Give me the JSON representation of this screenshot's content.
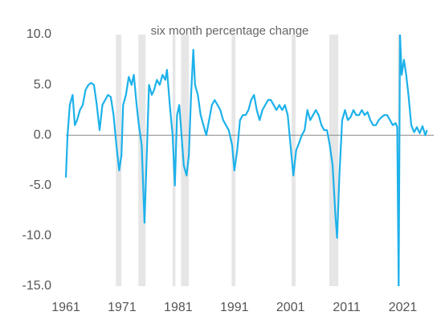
{
  "chart_data": {
    "type": "line",
    "title": "six month percentage change",
    "x": [
      1961.0,
      1961.3,
      1961.7,
      1962.2,
      1962.6,
      1963.0,
      1963.5,
      1964.0,
      1964.5,
      1965.0,
      1965.5,
      1966.0,
      1966.5,
      1967.0,
      1967.5,
      1968.0,
      1968.5,
      1969.0,
      1969.5,
      1970.0,
      1970.5,
      1970.9,
      1971.2,
      1971.7,
      1972.2,
      1972.7,
      1973.1,
      1973.6,
      1974.0,
      1974.5,
      1975.0,
      1975.4,
      1975.8,
      1976.3,
      1976.7,
      1977.2,
      1977.7,
      1978.2,
      1978.7,
      1979.0,
      1979.5,
      1980.0,
      1980.4,
      1980.8,
      1981.2,
      1981.6,
      1982.0,
      1982.5,
      1982.9,
      1983.3,
      1983.7,
      1984.0,
      1984.5,
      1985.0,
      1985.5,
      1986.0,
      1986.5,
      1987.0,
      1987.5,
      1988.0,
      1988.5,
      1989.0,
      1989.5,
      1990.0,
      1990.6,
      1991.0,
      1991.5,
      1992.0,
      1992.5,
      1993.0,
      1993.5,
      1994.0,
      1994.5,
      1995.0,
      1995.5,
      1996.0,
      1996.5,
      1997.0,
      1997.5,
      1998.0,
      1998.5,
      1999.0,
      1999.5,
      2000.0,
      2000.5,
      2001.0,
      2001.5,
      2002.0,
      2002.5,
      2003.0,
      2003.5,
      2004.0,
      2004.5,
      2005.0,
      2005.5,
      2006.0,
      2006.5,
      2007.0,
      2007.5,
      2008.0,
      2008.5,
      2009.0,
      2009.3,
      2009.7,
      2010.2,
      2010.7,
      2011.2,
      2011.7,
      2012.2,
      2012.7,
      2013.2,
      2013.7,
      2014.2,
      2014.7,
      2015.2,
      2015.7,
      2016.2,
      2016.7,
      2017.2,
      2017.7,
      2018.2,
      2018.7,
      2019.2,
      2019.7,
      2020.0,
      2020.25,
      2020.5,
      2020.8,
      2021.2,
      2021.6,
      2022.0,
      2022.5,
      2023.0,
      2023.5,
      2024.0,
      2024.5,
      2025.0,
      2025.3
    ],
    "series": [
      {
        "color": "#1db1ea",
        "values": [
          -4.2,
          0,
          3,
          4,
          1,
          1.5,
          2.5,
          3,
          4.5,
          5,
          5.2,
          5,
          3,
          0.5,
          3,
          3.5,
          4,
          3.8,
          2,
          -1,
          -3.5,
          -2,
          3,
          4,
          5.8,
          5,
          6,
          3,
          1,
          -1,
          -8.7,
          -2,
          5,
          4,
          4.5,
          5.5,
          5,
          6,
          5.5,
          6.5,
          3,
          0,
          -5,
          2,
          3,
          0,
          -3,
          -4,
          -2,
          4,
          8.5,
          5,
          4,
          2,
          1,
          0,
          1.5,
          3,
          3.5,
          3,
          2.5,
          1.5,
          1,
          0.5,
          -1,
          -3.5,
          -1.5,
          1.5,
          2,
          2,
          2.5,
          3.5,
          4,
          2.5,
          1.5,
          2.5,
          3,
          3.5,
          3.5,
          3,
          2.5,
          3,
          2.5,
          3,
          2,
          -1,
          -4,
          -1.5,
          -0.8,
          0,
          0.5,
          2.5,
          1.5,
          2,
          2.5,
          2,
          1,
          0.5,
          0.5,
          -1,
          -3,
          -8,
          -10.2,
          -4,
          1.5,
          2.5,
          1.5,
          1.8,
          2.5,
          2,
          2,
          2.5,
          2,
          2.3,
          1.5,
          1,
          1,
          1.5,
          1.8,
          2,
          2,
          1.5,
          1,
          1.2,
          0.8,
          -15,
          10,
          6,
          7.5,
          6,
          4,
          1,
          0.3,
          0.8,
          0.2,
          0.9,
          0,
          0.5
        ]
      }
    ],
    "recessions": [
      [
        1969.9,
        1970.9
      ],
      [
        1973.9,
        1975.2
      ],
      [
        1980.0,
        1980.5
      ],
      [
        1981.5,
        1982.9
      ],
      [
        1990.5,
        1991.2
      ],
      [
        2001.2,
        2001.9
      ],
      [
        2007.9,
        2009.5
      ],
      [
        2020.1,
        2020.4
      ]
    ],
    "xlim": [
      1961,
      2026.5
    ],
    "xticks": [
      1961,
      1971,
      1981,
      1991,
      2001,
      2011,
      2021
    ],
    "ylim": [
      -15,
      10
    ],
    "yticks": [
      {
        "value": 10,
        "label": "10.0"
      },
      {
        "value": 5,
        "label": "5.0"
      },
      {
        "value": 0,
        "label": "0.0"
      },
      {
        "value": -5,
        "label": "-5.0"
      },
      {
        "value": -10,
        "label": "-10.0"
      },
      {
        "value": -15,
        "label": "-15.0"
      }
    ]
  }
}
